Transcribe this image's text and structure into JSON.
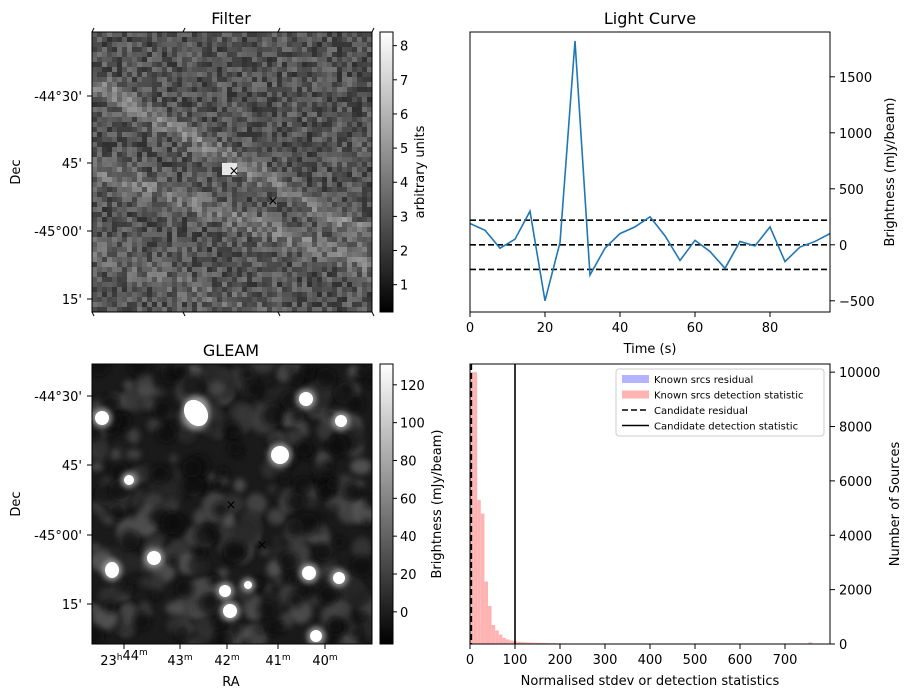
{
  "chart_data": [
    {
      "id": "filter",
      "type": "heatmap",
      "title": "Filter",
      "xlabel": "",
      "ylabel": "Dec",
      "y_ticks": [
        "-44°30'",
        "45'",
        "-45°00'",
        "15'"
      ],
      "colorbar": {
        "label": "arbitrary units",
        "min": 0.2,
        "max": 8.4,
        "ticks": [
          "1",
          "2",
          "3",
          "4",
          "5",
          "6",
          "7",
          "8"
        ]
      },
      "markers": [
        {
          "name": "candidate",
          "symbol": "×",
          "color": "#ff0000"
        },
        {
          "name": "reference",
          "symbol": "×",
          "color": "#0000ff"
        }
      ]
    },
    {
      "id": "light_curve",
      "type": "line",
      "title": "Light Curve",
      "xlabel": "Time (s)",
      "ylabel": "Brightness (mJy/beam)",
      "xlim": [
        0,
        96
      ],
      "ylim": [
        -600,
        1900
      ],
      "x_ticks": [
        0,
        20,
        40,
        60,
        80
      ],
      "y_ticks": [
        -500,
        0,
        500,
        1000,
        1500
      ],
      "series": [
        {
          "color": "#1f77b4",
          "x": [
            0,
            4,
            8,
            12,
            16,
            20,
            24,
            28,
            32,
            36,
            40,
            44,
            48,
            52,
            56,
            60,
            64,
            68,
            72,
            76,
            80,
            84,
            88,
            92,
            96
          ],
          "y": [
            190,
            130,
            -30,
            50,
            300,
            -500,
            20,
            1820,
            -270,
            -30,
            100,
            160,
            250,
            80,
            -140,
            40,
            -60,
            -210,
            30,
            -10,
            160,
            -150,
            -20,
            30,
            100
          ]
        }
      ],
      "hlines": [
        220,
        0,
        -220
      ]
    },
    {
      "id": "gleam",
      "type": "heatmap",
      "title": "GLEAM",
      "xlabel": "RA",
      "ylabel": "Dec",
      "x_ticks": [
        "23h44m",
        "43m",
        "42m",
        "41m",
        "40m"
      ],
      "y_ticks": [
        "-44°30'",
        "45'",
        "-45°00'",
        "15'"
      ],
      "colorbar": {
        "label": "Brightness (mJy/beam)",
        "min": -17,
        "max": 131,
        "ticks": [
          "0",
          "20",
          "40",
          "60",
          "80",
          "100",
          "120"
        ]
      },
      "markers": [
        {
          "name": "candidate",
          "symbol": "×",
          "color": "#ff0000"
        },
        {
          "name": "reference",
          "symbol": "×",
          "color": "#0000ff"
        }
      ]
    },
    {
      "id": "histogram",
      "type": "bar",
      "title": "",
      "xlabel": "Normalised stdev or detection statistics",
      "ylabel": "Number of Sources",
      "xlim": [
        0,
        800
      ],
      "ylim": [
        0,
        10300
      ],
      "x_ticks": [
        0,
        100,
        200,
        300,
        400,
        500,
        600,
        700
      ],
      "y_ticks": [
        0,
        2000,
        4000,
        6000,
        8000,
        10000
      ],
      "bin_width": 8,
      "series": [
        {
          "name": "Known srcs residual",
          "color": "#b3b3ff",
          "values": [
            0
          ]
        },
        {
          "name": "Known srcs detection statistic",
          "color": "#ffb3b3",
          "bin_start": 0,
          "values": [
            10000,
            10000,
            5300,
            4800,
            2300,
            1400,
            700,
            500,
            350,
            220,
            170,
            130,
            100,
            80,
            70,
            60,
            55,
            50,
            45,
            40,
            40,
            35,
            30,
            30,
            25,
            25,
            22,
            20,
            20,
            18,
            16,
            15,
            14,
            12,
            11,
            10,
            10,
            9,
            8,
            8,
            7,
            7,
            6,
            6,
            5,
            5,
            5,
            4,
            4,
            4,
            4,
            3,
            3,
            3,
            3,
            3,
            2,
            2,
            2,
            2,
            2,
            2,
            2,
            2,
            2,
            2,
            2,
            2,
            2,
            2,
            2,
            2,
            2,
            2,
            2,
            2,
            2,
            2,
            2,
            2,
            2,
            2,
            2,
            2,
            2,
            2,
            2,
            2,
            2,
            2,
            2,
            2,
            2,
            1,
            60
          ]
        }
      ],
      "vlines": [
        {
          "name": "Candidate residual",
          "x": 3,
          "style": "dashed",
          "color": "#000000"
        },
        {
          "name": "Candidate detection statistic",
          "x": 100,
          "style": "solid",
          "color": "#000000"
        }
      ],
      "legend": "top-right"
    }
  ]
}
